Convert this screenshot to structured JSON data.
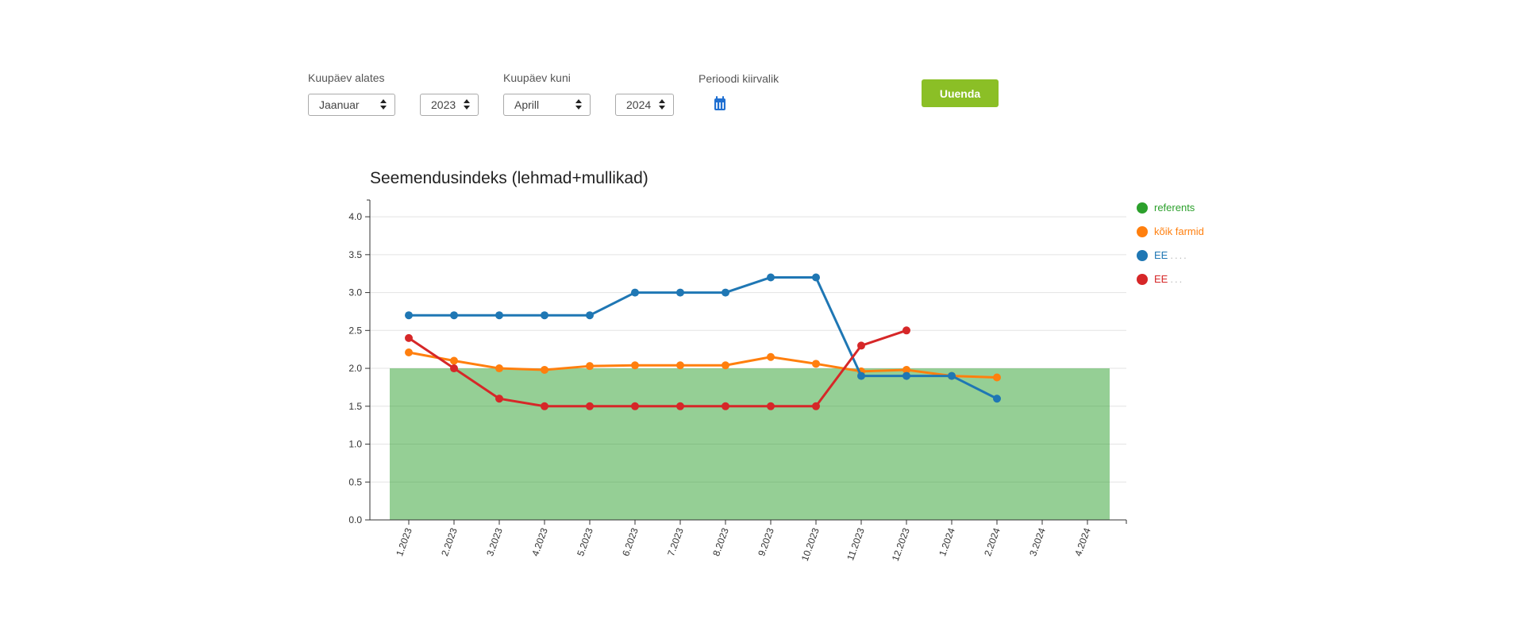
{
  "filters": {
    "from_label": "Kuupäev alates",
    "from_month": "Jaanuar",
    "from_year": "2023",
    "to_label": "Kuupäev kuni",
    "to_month": "Aprill",
    "to_year": "2024",
    "period_label": "Perioodi kiirvalik",
    "refresh_label": "Uuenda"
  },
  "chart_data": {
    "type": "line",
    "title": "Seemendusindeks (lehmad+mullikad)",
    "xlabel": "",
    "ylabel": "",
    "ylim": [
      0,
      4.2
    ],
    "yticks": [
      "0.0",
      "0.5",
      "1.0",
      "1.5",
      "2.0",
      "2.5",
      "3.0",
      "3.5",
      "4.0"
    ],
    "grid": true,
    "legend_position": "right",
    "categories": [
      "1.2023",
      "2.2023",
      "3.2023",
      "4.2023",
      "5.2023",
      "6.2023",
      "7.2023",
      "8.2023",
      "9.2023",
      "10.2023",
      "11.2023",
      "12.2023",
      "1.2024",
      "2.2024",
      "3.2024",
      "4.2024"
    ],
    "reference": {
      "name": "referents",
      "value": 2.0,
      "color": "#2ca02c"
    },
    "series": [
      {
        "name": "kõik farmid",
        "color": "#ff7f0e",
        "values": [
          2.21,
          2.1,
          2.0,
          1.98,
          2.03,
          2.04,
          2.04,
          2.04,
          2.15,
          2.06,
          1.96,
          1.98,
          1.9,
          1.88,
          null,
          null
        ]
      },
      {
        "name": "EE",
        "suffix": "....",
        "color": "#1f77b4",
        "values": [
          2.7,
          2.7,
          2.7,
          2.7,
          2.7,
          3.0,
          3.0,
          3.0,
          3.2,
          3.2,
          1.9,
          1.9,
          1.9,
          1.6,
          null,
          null
        ]
      },
      {
        "name": "EE",
        "suffix": "...",
        "color": "#d62728",
        "values": [
          2.4,
          2.0,
          1.6,
          1.5,
          1.5,
          1.5,
          1.5,
          1.5,
          1.5,
          1.5,
          2.3,
          2.5,
          null,
          null,
          null,
          null
        ]
      }
    ]
  }
}
